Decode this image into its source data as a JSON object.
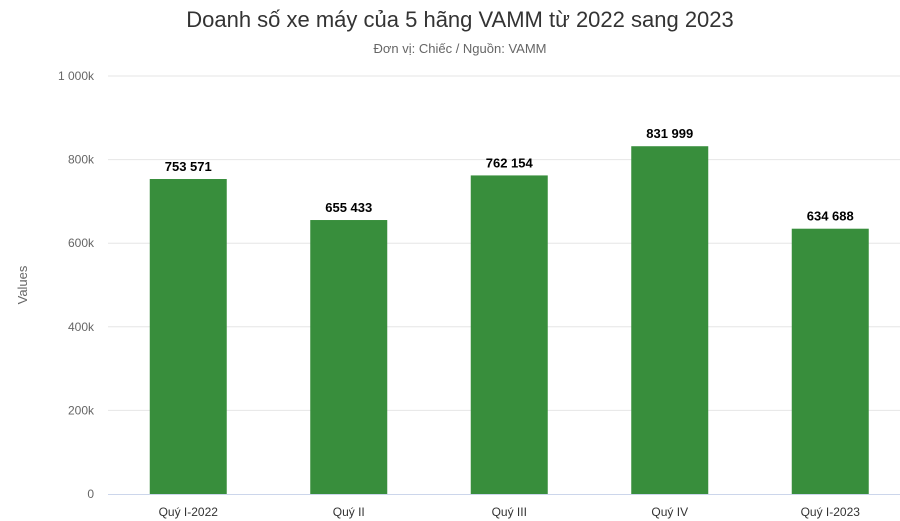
{
  "chart_data": {
    "type": "bar",
    "title": "Doanh số xe máy của 5 hãng VAMM từ 2022 sang 2023",
    "subtitle": "Đơn vị: Chiếc / Nguồn: VAMM",
    "ylabel": "Values",
    "xlabel": "",
    "categories": [
      "Quý I-2022",
      "Quý II",
      "Quý III",
      "Quý IV",
      "Quý I-2023"
    ],
    "values": [
      753571,
      655433,
      762154,
      831999,
      634688
    ],
    "data_labels": [
      "753 571",
      "655 433",
      "762 154",
      "831 999",
      "634 688"
    ],
    "ylim": [
      0,
      1000000
    ],
    "yticks": [
      0,
      200000,
      400000,
      600000,
      800000,
      1000000
    ],
    "ytick_labels": [
      "0",
      "200k",
      "400k",
      "600k",
      "800k",
      "1 000k"
    ],
    "grid": true,
    "bar_color": "#388e3c"
  }
}
